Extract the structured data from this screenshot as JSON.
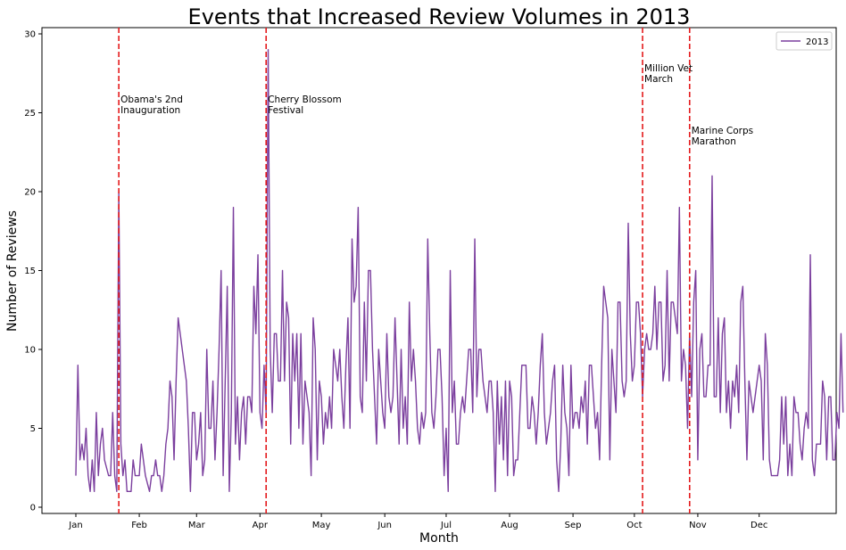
{
  "chart_data": {
    "type": "line",
    "title": "Events that Increased Review Volumes in 2013",
    "xlabel": "Month",
    "ylabel": "Number of Reviews",
    "ylim": [
      0,
      30
    ],
    "yticks": [
      "0",
      "5",
      "10",
      "15",
      "20",
      "25",
      "30"
    ],
    "xticks": [
      "Jan",
      "Feb",
      "Mar",
      "Apr",
      "May",
      "Jun",
      "Jul",
      "Aug",
      "Sep",
      "Oct",
      "Nov",
      "Dec"
    ],
    "grid": false,
    "legend_position": "top-right",
    "series": [
      {
        "name": "2013",
        "color": "#7b3f9e",
        "x_day_of_year_note_removed": null,
        "values": [
          2,
          9,
          3,
          4,
          3,
          5,
          2,
          1,
          3,
          1,
          6,
          2,
          4,
          5,
          3,
          2.5,
          2,
          2,
          6,
          2,
          1,
          20,
          4,
          2,
          3,
          1,
          1,
          1,
          3,
          2,
          2,
          2,
          4,
          3,
          2,
          1.5,
          1,
          2,
          2,
          3,
          2,
          2,
          1,
          2,
          4,
          5,
          8,
          7,
          3,
          8,
          12,
          11,
          10,
          9,
          8,
          5,
          1,
          6,
          6,
          3,
          4,
          6,
          2,
          3,
          10,
          5,
          5,
          8,
          3,
          6,
          10,
          15,
          2,
          8,
          14,
          1,
          6,
          19,
          4,
          7,
          3,
          6,
          7,
          4,
          7,
          7,
          6,
          14,
          11,
          16,
          6,
          5,
          9,
          6,
          29,
          10,
          6,
          11,
          11,
          8,
          8,
          15,
          8,
          13,
          12,
          4,
          11,
          8,
          11,
          5,
          11,
          4,
          8,
          7,
          6,
          2,
          12,
          10,
          3,
          8,
          7,
          4,
          6,
          5,
          7,
          5,
          10,
          9,
          8,
          10,
          7,
          5,
          9,
          12,
          5,
          17,
          13,
          14,
          19,
          7,
          6,
          13,
          8,
          15,
          15,
          10,
          7,
          4,
          10,
          8,
          6,
          5,
          11,
          7,
          6,
          7,
          12,
          8,
          4,
          10,
          5,
          7,
          4,
          13,
          8,
          10,
          8,
          5,
          4,
          6,
          5,
          6,
          17,
          11,
          6,
          5,
          7,
          10,
          10,
          7,
          2,
          5,
          1,
          15,
          6,
          8,
          4,
          4,
          6,
          7,
          6,
          8,
          10,
          10,
          6,
          17,
          7,
          10,
          10,
          8,
          7,
          6,
          8,
          8,
          6,
          1,
          8,
          4,
          7,
          3,
          8,
          2,
          8,
          7,
          2,
          3,
          3,
          6,
          9,
          9,
          9,
          5,
          5,
          7,
          6,
          4,
          6,
          9,
          11,
          6,
          4,
          5,
          6,
          8,
          9,
          3,
          1,
          4,
          9,
          6,
          5,
          2,
          9,
          5,
          6,
          6,
          5,
          7,
          6,
          8,
          4,
          9,
          9,
          7,
          5,
          6,
          3,
          9,
          14,
          13,
          12,
          3,
          10,
          8,
          6,
          13,
          13,
          8,
          7,
          8,
          18,
          11,
          8,
          9,
          13,
          13,
          11,
          7,
          10,
          11,
          10,
          10,
          11,
          14,
          10,
          13,
          13,
          8,
          9,
          15,
          8,
          13,
          13,
          12,
          11,
          19,
          8,
          10,
          9,
          5,
          11,
          7,
          13,
          15,
          3,
          10,
          11,
          7,
          7,
          9,
          9,
          21,
          7,
          7,
          12,
          6,
          11,
          12,
          6,
          8,
          5,
          8,
          7,
          9,
          6,
          13,
          14,
          8,
          3,
          8,
          7,
          6,
          7,
          8,
          9,
          8,
          3,
          11,
          9,
          3,
          2,
          2,
          2,
          2,
          3,
          7,
          4,
          7,
          2,
          4,
          2,
          7,
          6,
          6,
          4,
          3,
          5,
          6,
          5,
          16,
          3,
          2,
          4,
          4,
          4,
          8,
          7,
          3,
          7,
          7,
          3,
          3,
          6,
          5,
          11,
          6
        ]
      }
    ],
    "annotations": [
      {
        "label_line1": "Obama's 2nd",
        "label_line2": "Inauguration",
        "day": 21
      },
      {
        "label_line1": "Cherry Blossom",
        "label_line2": "Festival",
        "day": 93
      },
      {
        "label_line1": "Million Vet",
        "label_line2": "March",
        "day": 277
      },
      {
        "label_line1": "Marine Corps",
        "label_line2": "Marathon",
        "day": 300
      }
    ],
    "vline_color": "#e41a1c"
  }
}
